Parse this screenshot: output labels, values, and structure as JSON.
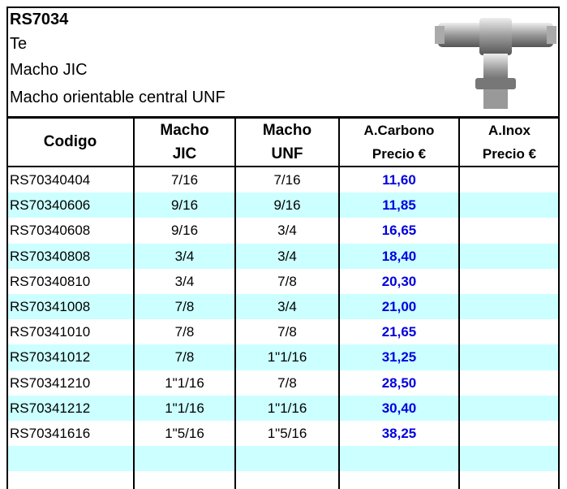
{
  "header": {
    "lines": [
      "RS7034",
      "Te",
      "Macho  JIC",
      "Macho orientable central UNF"
    ]
  },
  "table": {
    "columns": [
      [
        "Codigo"
      ],
      [
        "Macho",
        "JIC"
      ],
      [
        "Macho",
        "UNF"
      ],
      [
        "A.Carbono",
        "Precio €"
      ],
      [
        "A.Inox",
        "Precio €"
      ]
    ],
    "rows": [
      [
        "RS70340404",
        "7/16",
        "7/16",
        "11,60"
      ],
      [
        "RS70340606",
        "9/16",
        "9/16",
        "11,85"
      ],
      [
        "RS70340608",
        "9/16",
        "3/4",
        "16,65"
      ],
      [
        "RS70340808",
        "3/4",
        "3/4",
        "18,40"
      ],
      [
        "RS70340810",
        "3/4",
        "7/8",
        "20,30"
      ],
      [
        "RS70341008",
        "7/8",
        "3/4",
        "21,00"
      ],
      [
        "RS70341010",
        "7/8",
        "7/8",
        "21,65"
      ],
      [
        "RS70341012",
        "7/8",
        "1\"1/16",
        "31,25"
      ],
      [
        "RS70341210",
        "1\"1/16",
        "7/8",
        "28,50"
      ],
      [
        "RS70341212",
        "1\"1/16",
        "1\"1/16",
        "30,40"
      ],
      [
        "RS70341616",
        "1\"5/16",
        "1\"5/16",
        "38,25"
      ]
    ]
  }
}
